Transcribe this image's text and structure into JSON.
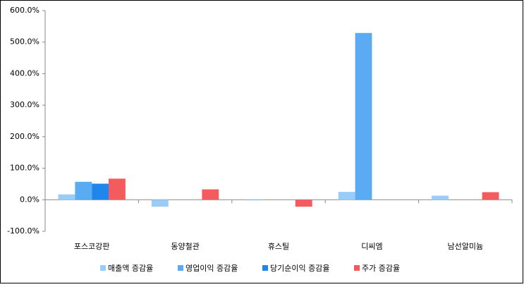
{
  "chart_data": {
    "type": "bar",
    "categories": [
      "포스코강판",
      "동양철관",
      "휴스틸",
      "디씨엠",
      "남선알미늄"
    ],
    "series": [
      {
        "name": "매출액 증감율",
        "color": "#99ccf8",
        "values": [
          17,
          -22,
          -2,
          25,
          13
        ]
      },
      {
        "name": "영업이익 증감율",
        "color": "#5aabf2",
        "values": [
          57,
          0,
          0,
          529,
          0
        ]
      },
      {
        "name": "당기순이익 증감율",
        "color": "#1f86ec",
        "values": [
          51,
          0,
          0,
          0,
          0
        ]
      },
      {
        "name": "주가 증감율",
        "color": "#f45b5f",
        "values": [
          67,
          33,
          -22,
          0,
          24
        ]
      }
    ],
    "ylim": [
      -100,
      600
    ],
    "yticks": [
      {
        "value": -100,
        "label": "-100.0%"
      },
      {
        "value": 0,
        "label": "0.0%"
      },
      {
        "value": 100,
        "label": "100.0%"
      },
      {
        "value": 200,
        "label": "200.0%"
      },
      {
        "value": 300,
        "label": "300.0%"
      },
      {
        "value": 400,
        "label": "400.0%"
      },
      {
        "value": 500,
        "label": "500.0%"
      },
      {
        "value": 600,
        "label": "600.0%"
      }
    ],
    "legend": "bottom"
  }
}
